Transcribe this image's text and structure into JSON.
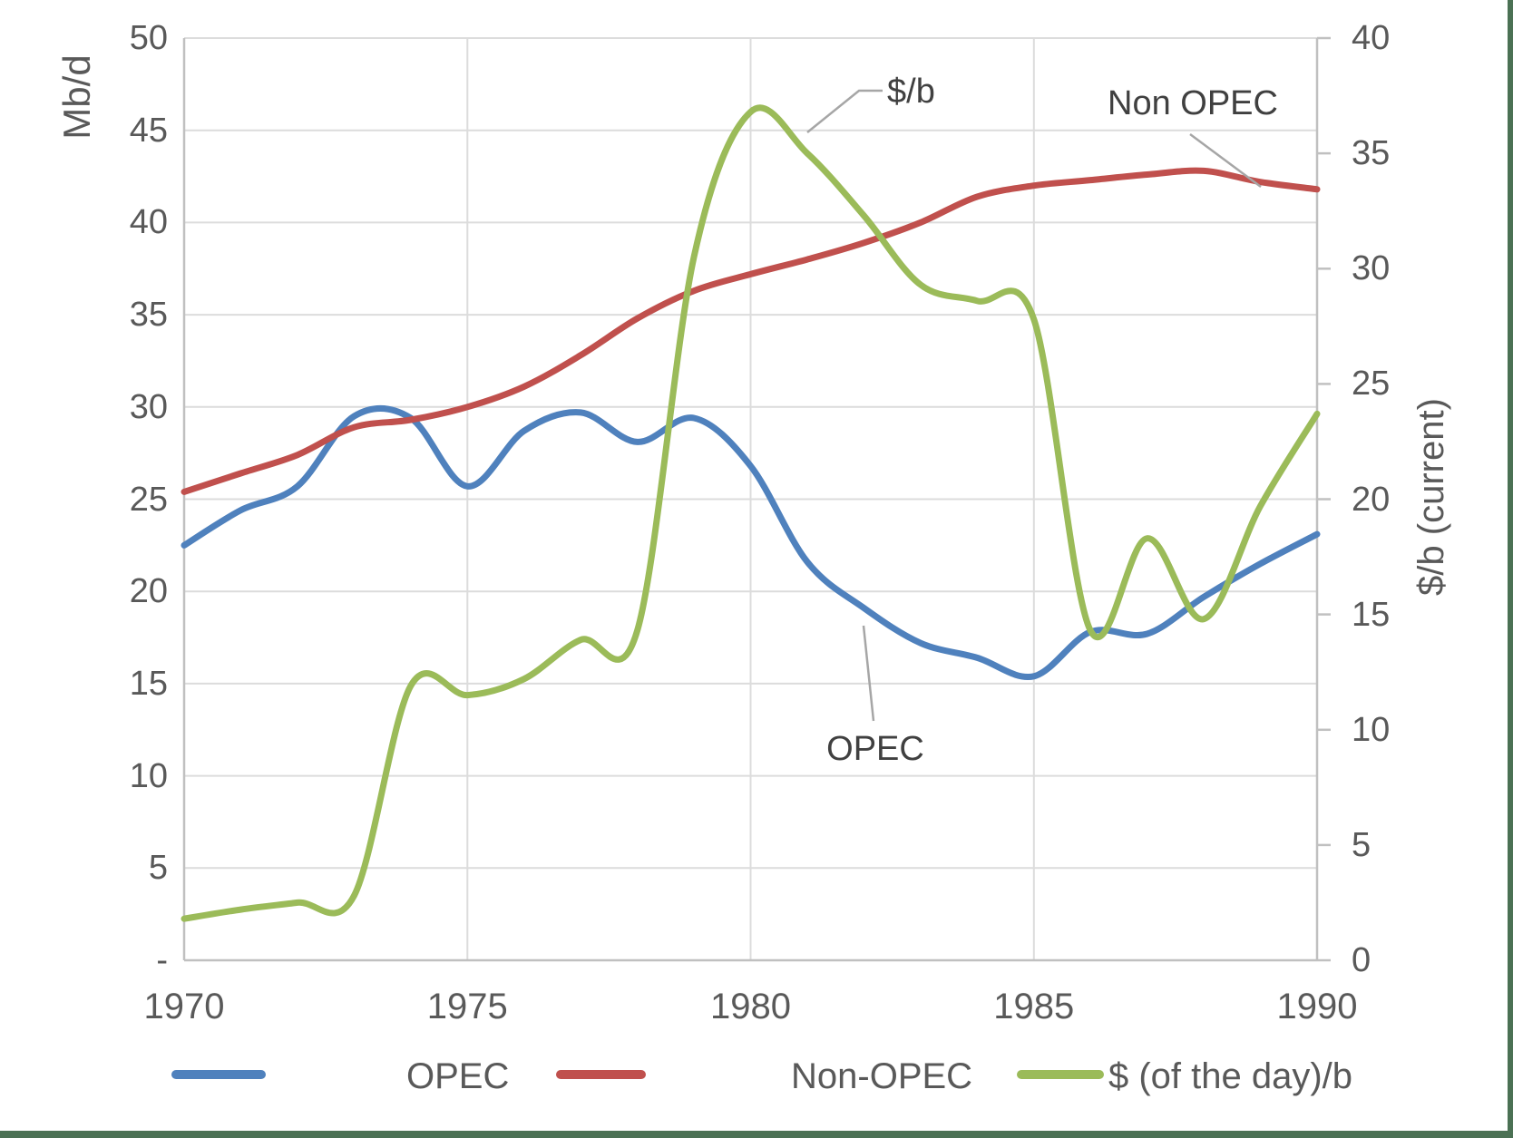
{
  "page": {
    "background": "#FFFFFF",
    "frame_border_color": "#4B7154"
  },
  "chart": {
    "left_axis_title": "Mb/d",
    "right_axis_title": "$/b (current)",
    "left_tick_labels": [
      "50",
      "45",
      "40",
      "35",
      "30",
      "25",
      "20",
      "15",
      "10",
      "5",
      "-"
    ],
    "right_tick_labels": [
      "40",
      "35",
      "30",
      "25",
      "20",
      "15",
      "10",
      "5",
      "0"
    ],
    "x_tick_labels": [
      "1970",
      "1975",
      "1980",
      "1985",
      "1990"
    ],
    "annotations": {
      "price_label": "$/b",
      "non_opec_label": "Non OPEC",
      "opec_label": "OPEC"
    },
    "grid_color": "#DCDCDC",
    "axis_line_color": "#C0C0C0",
    "leader_line_color": "#A6A6A6"
  },
  "legend": {
    "items": [
      {
        "label": "OPEC",
        "color": "#4F81BD"
      },
      {
        "label": "Non-OPEC",
        "color": "#C0504D"
      },
      {
        "label": "$ (of the day)/b",
        "color": "#9BBB59"
      }
    ]
  },
  "chart_data": {
    "type": "line",
    "smoothed": true,
    "grid": true,
    "legend_position": "bottom",
    "x": [
      1970,
      1971,
      1972,
      1973,
      1974,
      1975,
      1976,
      1977,
      1978,
      1979,
      1980,
      1981,
      1982,
      1983,
      1984,
      1985,
      1986,
      1987,
      1988,
      1989,
      1990
    ],
    "x_axis": {
      "range": [
        1970,
        1990
      ],
      "tick_years": [
        1970,
        1975,
        1980,
        1985,
        1990
      ]
    },
    "left_axis": {
      "title": "Mb/d",
      "range": [
        0,
        50
      ],
      "tick_step": 5
    },
    "right_axis": {
      "title": "$/b (current)",
      "range": [
        0,
        40
      ],
      "tick_step": 5
    },
    "series": [
      {
        "name": "OPEC",
        "axis": "left",
        "unit": "Mb/d",
        "color": "#4F81BD",
        "values": [
          22.5,
          24.4,
          25.7,
          29.5,
          29.4,
          25.7,
          28.7,
          29.7,
          28.1,
          29.4,
          26.8,
          21.6,
          19.1,
          17.2,
          16.4,
          15.4,
          17.8,
          17.7,
          19.7,
          21.5,
          23.1
        ]
      },
      {
        "name": "Non-OPEC",
        "axis": "left",
        "unit": "Mb/d",
        "color": "#C0504D",
        "values": [
          25.4,
          26.4,
          27.4,
          28.9,
          29.3,
          30.0,
          31.1,
          32.8,
          34.8,
          36.3,
          37.2,
          38.0,
          38.9,
          40.0,
          41.4,
          42.0,
          42.3,
          42.6,
          42.8,
          42.2,
          41.8
        ]
      },
      {
        "name": "$ (of the day)/b",
        "axis": "right",
        "unit": "$/b",
        "color": "#9BBB59",
        "values": [
          1.8,
          2.2,
          2.5,
          2.8,
          11.9,
          11.5,
          12.2,
          13.9,
          14.3,
          30.5,
          36.8,
          35.0,
          32.3,
          29.3,
          28.6,
          27.8,
          14.3,
          18.3,
          14.8,
          19.7,
          23.7
        ]
      }
    ]
  }
}
